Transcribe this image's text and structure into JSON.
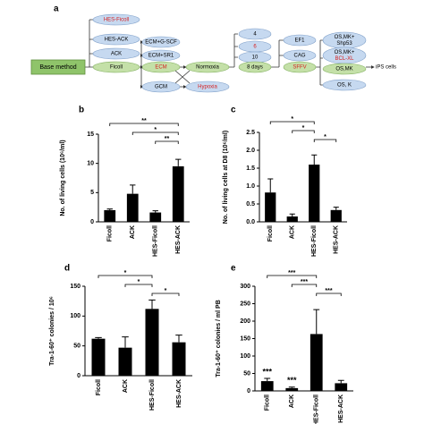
{
  "panel_a": {
    "label": "a",
    "base": "Base method",
    "nodes": [
      {
        "lines": [
          "HES-Ficoll"
        ]
      },
      {
        "lines": [
          "HES-ACK"
        ]
      },
      {
        "lines": [
          "ACK"
        ]
      },
      {
        "lines": [
          "Ficoll"
        ]
      },
      {
        "lines": [
          "ECM+G-SCF"
        ]
      },
      {
        "lines": [
          "ECM+SR1"
        ]
      },
      {
        "lines": [
          "ECM"
        ]
      },
      {
        "lines": [
          "GCM"
        ]
      },
      {
        "lines": [
          "Normoxia"
        ]
      },
      {
        "lines": [
          "Hypoxia"
        ]
      },
      {
        "lines": [
          "4"
        ]
      },
      {
        "lines": [
          "6"
        ]
      },
      {
        "lines": [
          "10"
        ]
      },
      {
        "lines": [
          "8 days"
        ]
      },
      {
        "lines": [
          "EF1"
        ]
      },
      {
        "lines": [
          "CAG"
        ]
      },
      {
        "lines": [
          "SFFV"
        ]
      },
      {
        "lines": [
          "OS,MK+",
          "Shp53"
        ]
      },
      {
        "lines": [
          "OS,MK+",
          "BCL-XL"
        ]
      },
      {
        "lines": [
          "OS,MK"
        ]
      },
      {
        "lines": [
          "OS, K"
        ]
      }
    ],
    "result": "iPS cells"
  },
  "chart_data": [
    {
      "type": "bar",
      "panel_label": "b",
      "y_label": "No. of living cells (10⁶/ml)",
      "categories": [
        "Ficoll",
        "ACK",
        "HES-Ficoll",
        "HES-ACK"
      ],
      "values": [
        2,
        4.8,
        1.6,
        9.5
      ],
      "errors": [
        0.2,
        1.5,
        0.3,
        1.2
      ],
      "color": "#000000",
      "ylim": [
        0,
        15
      ],
      "yticks": [
        0,
        5,
        10,
        15
      ],
      "brackets": [
        {
          "between": [
            "Ficoll",
            "HES-ACK"
          ],
          "label": "**"
        },
        {
          "between": [
            "ACK",
            "HES-ACK"
          ],
          "label": "*"
        },
        {
          "between": [
            "HES-Ficoll",
            "HES-ACK"
          ],
          "label": "**"
        }
      ]
    },
    {
      "type": "bar",
      "panel_label": "c",
      "y_label": "No. of living cells at D8 (10⁶/ml)",
      "categories": [
        "Ficoll",
        "ACK",
        "HES-Ficoll",
        "HES-ACK"
      ],
      "values": [
        0.82,
        0.15,
        1.6,
        0.33
      ],
      "errors": [
        0.38,
        0.07,
        0.27,
        0.08
      ],
      "color": "#000000",
      "ylim": [
        0,
        2.5
      ],
      "yticks": [
        {
          "value": 0,
          "label": "0.0"
        },
        0.5,
        {
          "value": 1,
          "label": "1.0"
        },
        1.5,
        {
          "value": 2,
          "label": "2.0"
        },
        2.5
      ],
      "brackets": [
        {
          "between": [
            "Ficoll",
            "HES-Ficoll"
          ],
          "label": "*"
        },
        {
          "between": [
            "ACK",
            "HES-Ficoll"
          ],
          "label": "*"
        },
        {
          "between": [
            "HES-Ficoll",
            "HES-ACK"
          ],
          "label": "*"
        }
      ]
    },
    {
      "type": "bar",
      "panel_label": "d",
      "y_label": "Tra-1-60⁺ colonies / 10⁶",
      "categories": [
        "Ficoll",
        "ACK",
        "HES-Ficoll",
        "HES-ACK"
      ],
      "values": [
        62,
        47,
        112,
        56
      ],
      "errors": [
        2,
        18,
        15,
        12
      ],
      "color": "#000000",
      "ylim": [
        0,
        150
      ],
      "yticks": [
        0,
        50,
        100,
        150
      ],
      "brackets": [
        {
          "between": [
            "Ficoll",
            "HES-Ficoll"
          ],
          "label": "*"
        },
        {
          "between": [
            "ACK",
            "HES-Ficoll"
          ],
          "label": "*"
        },
        {
          "between": [
            "HES-Ficoll",
            "HES-ACK"
          ],
          "label": "*"
        }
      ]
    },
    {
      "type": "bar",
      "panel_label": "e",
      "y_label": "Tra-1-60⁺ colonies / ml PB",
      "categories": [
        "Ficoll",
        "ACK",
        "HES-Ficoll",
        "HES-ACK"
      ],
      "values": [
        28,
        8,
        163,
        22
      ],
      "errors": [
        8,
        3,
        70,
        8
      ],
      "color": "#000000",
      "ylim": [
        0,
        300
      ],
      "yticks": [
        0,
        50,
        100,
        150,
        200,
        250,
        300
      ],
      "brackets": [
        {
          "between": [
            "Ficoll",
            "HES-Ficoll"
          ],
          "label": "***"
        },
        {
          "between": [
            "ACK",
            "HES-Ficoll"
          ],
          "label": "***"
        },
        {
          "between": [
            "HES-Ficoll",
            "HES-ACK"
          ],
          "label": "***"
        }
      ],
      "annotations": [
        {
          "category": "Ficoll",
          "label": "***"
        },
        {
          "category": "ACK",
          "label": "***"
        }
      ]
    }
  ]
}
